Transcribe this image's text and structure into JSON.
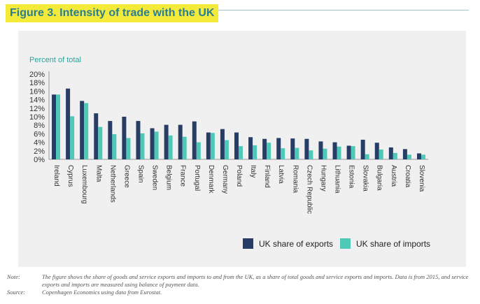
{
  "figure_title": "Figure 3. Intensity of trade with the UK",
  "notes": {
    "note_label": "Note:",
    "note_text": "The figure shows the share of goods and service exports and imports to and from the UK, as a share of total goods and service exports and imports. Data is from 2015, and service exports and imports are measured using balance of payment data.",
    "source_label": "Source:",
    "source_text": "Copenhagen Economics using data from Eurostat."
  },
  "colors": {
    "exports": "#283d66",
    "imports": "#4ec9b7",
    "panel": "#f0f0f0",
    "title_bg": "#f3ea3a",
    "title_text": "#2b7d94"
  },
  "chart_data": {
    "type": "bar",
    "title": "",
    "ylabel": "Percent of total",
    "ylim": [
      0,
      20
    ],
    "yticks": [
      "0%",
      "2%",
      "4%",
      "6%",
      "8%",
      "10%",
      "12%",
      "14%",
      "16%",
      "18%",
      "20%"
    ],
    "grid": false,
    "legend": "bottom",
    "categories": [
      "Ireland",
      "Cyprus",
      "Luxembourg",
      "Malta",
      "Netherlands",
      "Greece",
      "Spain",
      "Sweden",
      "Belgium",
      "France",
      "Portugal",
      "Denmark",
      "Germany",
      "Poland",
      "Italy",
      "Finland",
      "Latvia",
      "Romania",
      "Czech Republic",
      "Hungary",
      "Lithuania",
      "Estonia",
      "Slovakia",
      "Bulgaria",
      "Austria",
      "Croatia",
      "Slovenia"
    ],
    "series": [
      {
        "name": "UK share of exports",
        "values": [
          15.2,
          16.6,
          13.7,
          10.8,
          9.0,
          10.0,
          9.0,
          7.3,
          8.1,
          8.1,
          8.9,
          6.3,
          7.1,
          6.3,
          5.2,
          4.8,
          5.0,
          4.9,
          4.8,
          4.2,
          4.0,
          3.2,
          4.6,
          3.9,
          2.8,
          2.4,
          1.4
        ]
      },
      {
        "name": "UK share of imports",
        "values": [
          15.2,
          10.1,
          13.2,
          7.6,
          5.9,
          5.0,
          6.1,
          6.5,
          5.6,
          5.3,
          4.0,
          6.2,
          4.5,
          3.1,
          3.3,
          3.9,
          2.6,
          2.7,
          2.1,
          2.5,
          3.0,
          3.1,
          1.2,
          2.3,
          1.5,
          1.1,
          1.1
        ]
      }
    ]
  }
}
